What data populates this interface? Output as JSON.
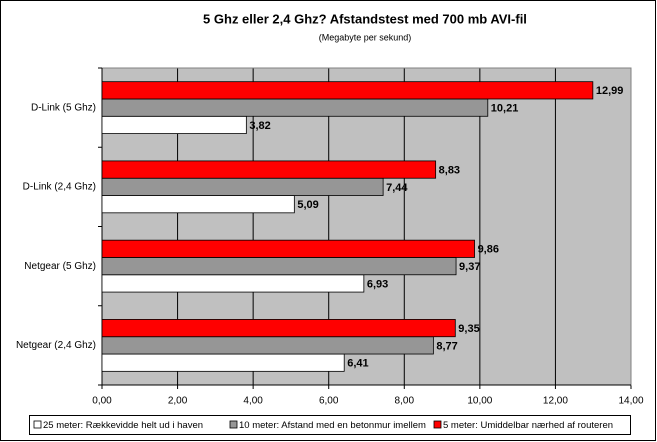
{
  "chart_data": {
    "type": "bar",
    "orientation": "horizontal",
    "title": "5 Ghz eller 2,4 Ghz? Afstandstest med 700 mb AVI-fil",
    "subtitle": "(Megabyte per sekund)",
    "categories": [
      "D-Link (5 Ghz)",
      "D-Link (2,4 Ghz)",
      "Netgear (5 Ghz)",
      "Netgear (2,4 Ghz)"
    ],
    "series": [
      {
        "name": "25 meter: Rækkevidde helt ud i haven",
        "color": "#ffffff",
        "values": [
          3.82,
          5.09,
          6.93,
          6.41
        ],
        "value_labels": [
          "3,82",
          "5,09",
          "6,93",
          "6,41"
        ]
      },
      {
        "name": "10 meter: Afstand med en betonmur imellem",
        "color": "#969696",
        "values": [
          10.21,
          7.44,
          9.37,
          8.77
        ],
        "value_labels": [
          "10,21",
          "7,44",
          "9,37",
          "8,77"
        ]
      },
      {
        "name": "5 meter: Umiddelbar nærhed af routeren",
        "color": "#ff0000",
        "values": [
          12.99,
          8.83,
          9.86,
          9.35
        ],
        "value_labels": [
          "12,99",
          "8,83",
          "9,86",
          "9,35"
        ]
      }
    ],
    "xlim": [
      0,
      14
    ],
    "xticks": [
      {
        "value": 0,
        "label": "0,00"
      },
      {
        "value": 2,
        "label": "2,00"
      },
      {
        "value": 4,
        "label": "4,00"
      },
      {
        "value": 6,
        "label": "6,00"
      },
      {
        "value": 8,
        "label": "8,00"
      },
      {
        "value": 10,
        "label": "10,00"
      },
      {
        "value": 12,
        "label": "12,00"
      },
      {
        "value": 14,
        "label": "14,00"
      }
    ],
    "grid": true,
    "plot_background": "#c0c0c0",
    "legend": "bottom"
  }
}
